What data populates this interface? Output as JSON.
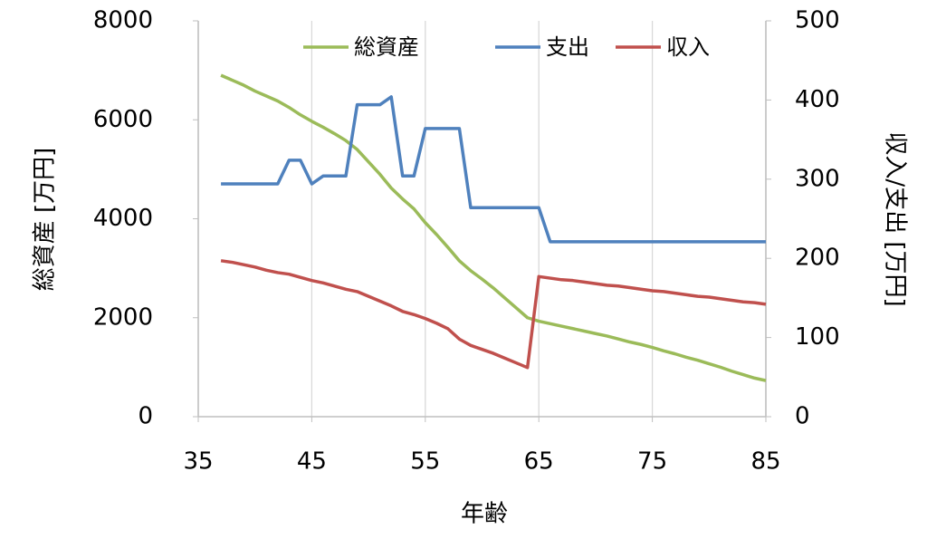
{
  "chart_data": {
    "type": "line",
    "x_label": "年齢",
    "y_label": "総資産 [万円]",
    "y2_label": "収入/支出 [万円]",
    "x": [
      37,
      38,
      39,
      40,
      41,
      42,
      43,
      44,
      45,
      46,
      47,
      48,
      49,
      50,
      51,
      52,
      53,
      54,
      55,
      56,
      57,
      58,
      59,
      60,
      61,
      62,
      63,
      64,
      65,
      66,
      67,
      68,
      69,
      70,
      71,
      72,
      73,
      74,
      75,
      76,
      77,
      78,
      79,
      80,
      81,
      82,
      83,
      84,
      85
    ],
    "series": [
      {
        "name": "総資産",
        "color": "#9bbb59",
        "axis": "y",
        "values": [
          6900,
          6800,
          6700,
          6580,
          6480,
          6380,
          6250,
          6100,
          5970,
          5850,
          5720,
          5580,
          5400,
          5150,
          4900,
          4620,
          4400,
          4200,
          3920,
          3680,
          3420,
          3150,
          2950,
          2780,
          2600,
          2400,
          2200,
          2000,
          1930,
          1880,
          1830,
          1780,
          1730,
          1680,
          1630,
          1570,
          1510,
          1460,
          1400,
          1330,
          1270,
          1200,
          1140,
          1070,
          1000,
          920,
          850,
          780,
          730
        ]
      },
      {
        "name": "支出",
        "color": "#4f81bd",
        "axis": "y2",
        "values": [
          294,
          294,
          294,
          294,
          294,
          294,
          324,
          324,
          294,
          304,
          304,
          304,
          394,
          394,
          394,
          404,
          304,
          304,
          364,
          364,
          364,
          364,
          264,
          264,
          264,
          264,
          264,
          264,
          264,
          221,
          221,
          221,
          221,
          221,
          221,
          221,
          221,
          221,
          221,
          221,
          221,
          221,
          221,
          221,
          221,
          221,
          221,
          221,
          221
        ]
      },
      {
        "name": "収入",
        "color": "#c0504d",
        "axis": "y2",
        "values": [
          197,
          195,
          192,
          189,
          185,
          182,
          180,
          176,
          172,
          169,
          165,
          161,
          158,
          152,
          146,
          140,
          133,
          129,
          124,
          118,
          111,
          98,
          90,
          85,
          80,
          74,
          68,
          62,
          177,
          175,
          173,
          172,
          170,
          168,
          166,
          165,
          163,
          161,
          159,
          158,
          156,
          154,
          152,
          151,
          149,
          147,
          145,
          144,
          142
        ]
      }
    ],
    "xlim": [
      35,
      85
    ],
    "xticks": [
      35,
      45,
      55,
      65,
      75,
      85
    ],
    "ylim": [
      0,
      8000
    ],
    "yticks": [
      0,
      2000,
      4000,
      6000,
      8000
    ],
    "y2lim": [
      0,
      500
    ],
    "y2ticks": [
      0,
      100,
      200,
      300,
      400,
      500
    ],
    "grid": true
  }
}
